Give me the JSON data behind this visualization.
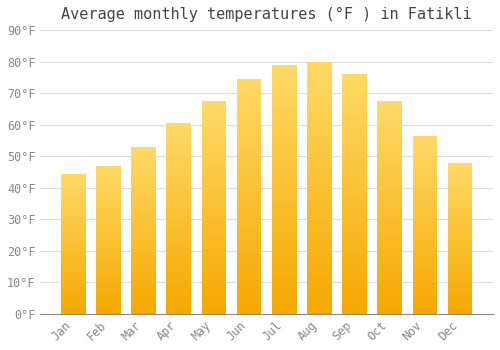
{
  "title": "Average monthly temperatures (°F ) in Fatikli",
  "months": [
    "Jan",
    "Feb",
    "Mar",
    "Apr",
    "May",
    "Jun",
    "Jul",
    "Aug",
    "Sep",
    "Oct",
    "Nov",
    "Dec"
  ],
  "values": [
    44.5,
    47,
    53,
    60.5,
    67.5,
    74.5,
    79,
    80,
    76,
    67.5,
    56.5,
    48
  ],
  "color_bottom": "#F5A800",
  "color_top": "#FFD966",
  "background_color": "#FFFFFF",
  "grid_color": "#DDDDDD",
  "ylim": [
    0,
    90
  ],
  "yticks": [
    0,
    10,
    20,
    30,
    40,
    50,
    60,
    70,
    80,
    90
  ],
  "title_fontsize": 11,
  "tick_fontsize": 8.5,
  "bar_width": 0.7,
  "gradient_steps": 100
}
